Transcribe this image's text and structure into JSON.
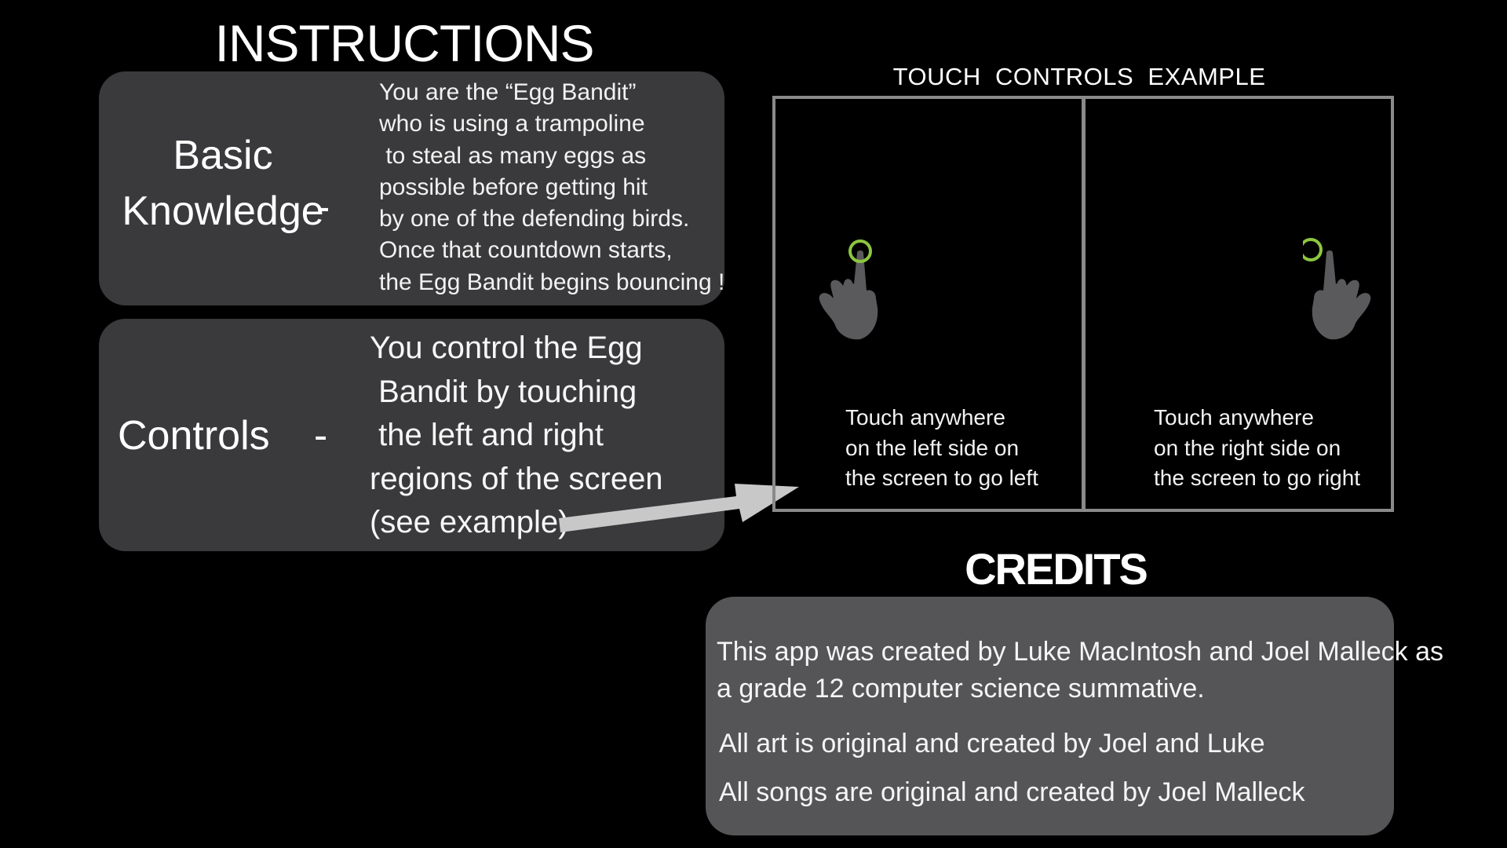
{
  "instructions": {
    "title": "INSTRUCTIONS",
    "basic": {
      "label_line1": "Basic",
      "label_line2": "Knowledge",
      "dash": "-",
      "lines": [
        "You are the “Egg Bandit”",
        "who is using a trampoline",
        " to steal as many eggs as",
        "possible before getting hit",
        "by one of the defending birds.",
        "Once that countdown starts,",
        "the Egg Bandit begins bouncing !"
      ]
    },
    "controls": {
      "label": "Controls",
      "dash": "-",
      "lines": [
        "You control the Egg",
        " Bandit by touching",
        " the left and right",
        "regions of the screen",
        "(see example)"
      ]
    }
  },
  "touch_example": {
    "title": "TOUCH  CONTROLS  EXAMPLE",
    "left_lines": [
      "Touch anywhere",
      "on the left side on",
      "the screen to go left"
    ],
    "right_lines": [
      "Touch anywhere",
      "on the right side on",
      "the screen to go right"
    ],
    "icons": [
      "hand-pointer-icon",
      "hand-pointer-icon"
    ],
    "colors": {
      "touch_ring": "#8dc63f",
      "hand": "#5a5a5c",
      "frame": "#8a8a8a"
    }
  },
  "credits": {
    "title": "CREDITS",
    "line1": "This app was created by Luke MacIntosh and Joel Malleck as",
    "line2": "a grade 12 computer science summative.",
    "line3": "All art is original and created by Joel and Luke",
    "line4": "All songs are original and created by Joel Malleck"
  }
}
